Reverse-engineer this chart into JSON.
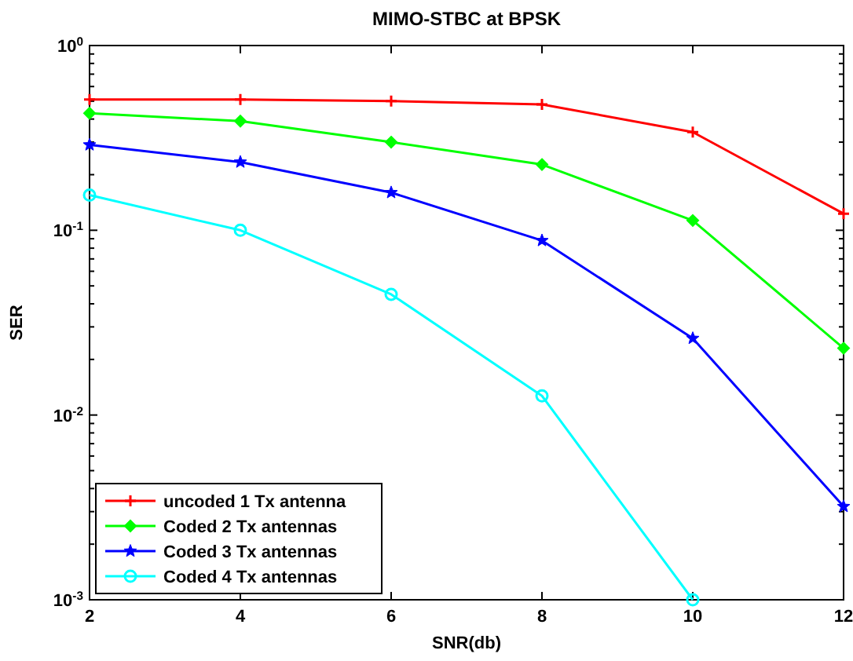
{
  "chart_data": {
    "type": "line",
    "title": "MIMO-STBC at BPSK",
    "xlabel": "SNR(db)",
    "ylabel": "SER",
    "log": "y",
    "grid": false,
    "legend": "bottom left",
    "line_style": "solid",
    "x": [
      2,
      4,
      6,
      8,
      10,
      12
    ],
    "xlim": [
      2,
      12
    ],
    "xticks": [
      2,
      4,
      6,
      8,
      10,
      12
    ],
    "ylim": [
      0.001,
      1
    ],
    "yticks": [
      {
        "value": 0.001,
        "label": "10$^{-3}$"
      },
      {
        "value": 0.01,
        "label": "10$^{-2}$"
      },
      {
        "value": 0.1,
        "label": "10$^{-1}$"
      },
      {
        "value": 1,
        "label": "10$^{0}$"
      }
    ],
    "series": [
      {
        "name": "uncoded 1 Tx antenna",
        "color": "#ff0000",
        "marker": "cross",
        "values": [
          0.51,
          0.51,
          0.5,
          0.48,
          0.34,
          0.123
        ]
      },
      {
        "name": "Coded 2 Tx antennas",
        "color": "#00ff00",
        "marker": "diamond",
        "values": [
          0.43,
          0.39,
          0.3,
          0.227,
          0.113,
          0.023
        ]
      },
      {
        "name": "Coded 3 Tx antennas",
        "color": "#0000ff",
        "marker": "star",
        "values": [
          0.29,
          0.234,
          0.16,
          0.088,
          0.026,
          0.0032
        ]
      },
      {
        "name": "Coded 4 Tx antennas",
        "color": "#00ffff",
        "marker": "circle",
        "values": [
          0.155,
          0.1,
          0.045,
          0.0127,
          0.001,
          null
        ]
      }
    ]
  }
}
